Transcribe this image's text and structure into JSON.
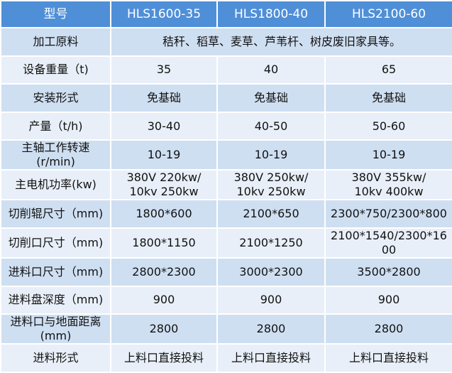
{
  "table": {
    "header": [
      "型号",
      "HLS1600-35",
      "HLS1800-40",
      "HLS2100-60"
    ],
    "rows": [
      [
        "加工原料",
        "秸秆、稻草、麦草、芦苇杆、树皮废旧家具等。"
      ],
      [
        "设备重量（t)",
        "35",
        "40",
        "65"
      ],
      [
        "安装形式",
        "免基础",
        "免基础",
        "免基础"
      ],
      [
        "产量（t/h)",
        "30-40",
        "40-50",
        "50-60"
      ],
      [
        "主轴工作转速\n(r/min)",
        "10-19",
        "10-19",
        "10-19"
      ],
      [
        "主电机功率(kw)",
        "380V 220kw/\n10kv 250kw",
        "380V 250kw/\n10kv 250kw",
        "380V 355kw/\n10kv 400kw"
      ],
      [
        "切削辊尺寸（mm)",
        "1800*600",
        "2100*650",
        "2300*750/2300*800"
      ],
      [
        "切削口尺寸（mm)",
        "1800*1150",
        "2100*1250",
        "2100*1540/2300*1600"
      ],
      [
        "进料口尺寸（mm)",
        "2800*2300",
        "3000*2300",
        "3500*2800"
      ],
      [
        "进料盘深度（mm)",
        "900",
        "900",
        "900"
      ],
      [
        "进料口与地面距离\n(mm)",
        "2800",
        "2800",
        "2800"
      ],
      [
        "进料形式",
        "上料口直接投料",
        "上料口直接投料",
        "上料口直接投料"
      ]
    ]
  }
}
